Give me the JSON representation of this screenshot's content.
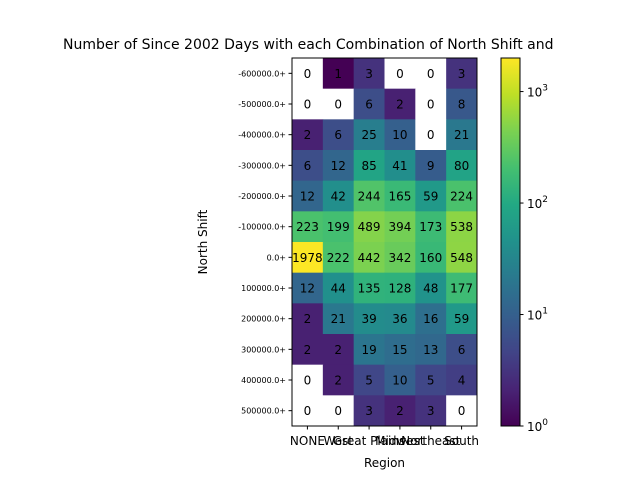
{
  "chart_data": {
    "type": "heatmap",
    "title": "Number of Since 2002 Days with each Combination of North Shift and",
    "xlabel": "Region",
    "ylabel": "North Shift",
    "x_categories": [
      "NONE",
      "West",
      "Great Plains",
      "Midwest",
      "Northeast",
      "South"
    ],
    "y_categories": [
      "-600000.0+",
      "-500000.0+",
      "-400000.0+",
      "-300000.0+",
      "-200000.0+",
      "-100000.0+",
      "0.0+",
      "100000.0+",
      "200000.0+",
      "300000.0+",
      "400000.0+",
      "500000.0+"
    ],
    "values": [
      [
        0,
        1,
        3,
        0,
        0,
        3
      ],
      [
        0,
        0,
        6,
        2,
        0,
        8
      ],
      [
        2,
        6,
        25,
        10,
        0,
        21
      ],
      [
        6,
        12,
        85,
        41,
        9,
        80
      ],
      [
        12,
        42,
        244,
        165,
        59,
        224
      ],
      [
        223,
        199,
        489,
        394,
        173,
        538
      ],
      [
        1978,
        222,
        442,
        342,
        160,
        548
      ],
      [
        12,
        44,
        135,
        128,
        48,
        177
      ],
      [
        2,
        21,
        39,
        36,
        16,
        59
      ],
      [
        2,
        2,
        19,
        15,
        13,
        6
      ],
      [
        0,
        2,
        5,
        10,
        5,
        4
      ],
      [
        0,
        0,
        3,
        2,
        3,
        0
      ]
    ],
    "color_scale": "log",
    "colormap": "viridis",
    "zero_color": "#ffffff",
    "colorbar": {
      "range": [
        1,
        2000
      ],
      "ticks": [
        {
          "value": 1,
          "base": "10",
          "exp": "0"
        },
        {
          "value": 10,
          "base": "10",
          "exp": "1"
        },
        {
          "value": 100,
          "base": "10",
          "exp": "2"
        },
        {
          "value": 1000,
          "base": "10",
          "exp": "3"
        }
      ]
    }
  }
}
